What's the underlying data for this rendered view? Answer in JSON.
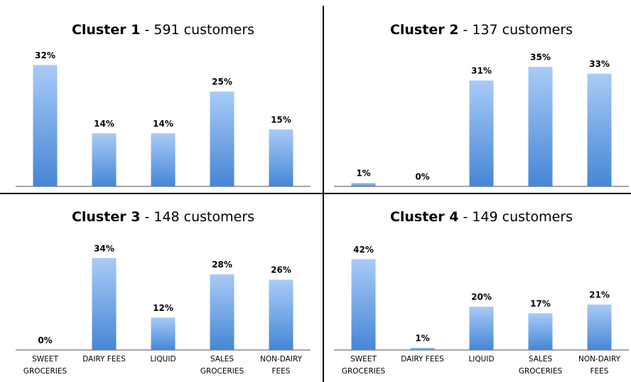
{
  "chart_data": [
    {
      "type": "bar",
      "title": {
        "name": "Cluster 1",
        "detail": "- 591 customers"
      },
      "categories": [
        null,
        null,
        null,
        null,
        null
      ],
      "values": [
        32,
        14,
        14,
        25,
        15
      ],
      "value_labels": [
        "32%",
        "14%",
        "14%",
        "25%",
        "15%"
      ],
      "ylim": [
        0,
        36
      ],
      "color": [
        "#a9cbf6",
        "#4586d6"
      ]
    },
    {
      "type": "bar",
      "title": {
        "name": "Cluster 2",
        "detail": "- 137 customers"
      },
      "categories": [
        null,
        null,
        null,
        null,
        null
      ],
      "values": [
        1,
        0,
        31,
        35,
        33
      ],
      "value_labels": [
        "1%",
        "0%",
        "31%",
        "35%",
        "33%"
      ],
      "ylim": [
        0,
        40
      ],
      "color": [
        "#a9cbf6",
        "#4586d6"
      ]
    },
    {
      "type": "bar",
      "title": {
        "name": "Cluster 3",
        "detail": "- 148 customers"
      },
      "categories": [
        "SWEET GROCERIES",
        "DAIRY FEES",
        "LIQUID",
        "SALES GROCERIES",
        "NON-DAIRY FEES"
      ],
      "values": [
        0,
        34,
        12,
        28,
        26
      ],
      "value_labels": [
        "0%",
        "34%",
        "12%",
        "28%",
        "26%"
      ],
      "ylim": [
        0,
        40
      ],
      "color": [
        "#a9cbf6",
        "#4586d6"
      ]
    },
    {
      "type": "bar",
      "title": {
        "name": "Cluster 4",
        "detail": "- 149 customers"
      },
      "categories": [
        "SWEET GROCERIES",
        "DAIRY FEES",
        "LIQUID",
        "SALES GROCERIES",
        "NON-DAIRY FEES"
      ],
      "values": [
        42,
        1,
        20,
        17,
        21
      ],
      "value_labels": [
        "42%",
        "1%",
        "20%",
        "17%",
        "21%"
      ],
      "ylim": [
        0,
        50
      ],
      "color": [
        "#a9cbf6",
        "#4586d6"
      ]
    }
  ]
}
